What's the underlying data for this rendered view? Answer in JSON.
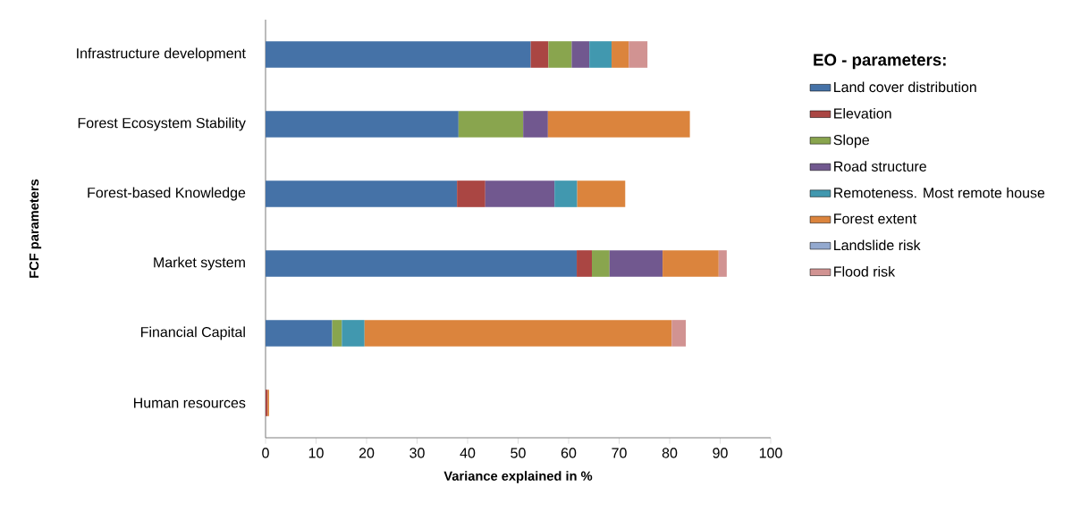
{
  "chart_data": {
    "type": "bar",
    "orientation": "horizontal",
    "stacked": true,
    "xlabel": "Variance explained in %",
    "ylabel": "FCF parameters",
    "legend_title": "EO - parameters:",
    "legend": "right",
    "categories": [
      "Infrastructure development",
      "Forest Ecosystem Stability",
      "Forest-based Knowledge",
      "Market system",
      "Financial Capital",
      "Human resources"
    ],
    "xlim": [
      0,
      100
    ],
    "xticks": [
      0,
      10,
      20,
      30,
      40,
      50,
      60,
      70,
      80,
      90,
      100
    ],
    "series": [
      {
        "name": "Land cover distribution",
        "color": "#4572a7",
        "values": [
          52.5,
          38.2,
          37.9,
          61.6,
          13.2,
          null
        ]
      },
      {
        "name": "Elevation",
        "color": "#aa4643",
        "values": [
          3.5,
          null,
          5.6,
          3.0,
          null,
          0.4
        ]
      },
      {
        "name": "Slope",
        "color": "#89a54e",
        "values": [
          4.6,
          12.8,
          null,
          3.5,
          1.9,
          null
        ]
      },
      {
        "name": "Road structure",
        "color": "#71588f",
        "values": [
          3.5,
          4.9,
          13.7,
          10.5,
          null,
          null
        ]
      },
      {
        "name": "Remoteness. Most remote house",
        "color": "#4198af",
        "values": [
          4.4,
          null,
          4.5,
          null,
          4.5,
          null
        ]
      },
      {
        "name": "Forest extent",
        "color": "#db843d",
        "values": [
          3.4,
          28.1,
          9.5,
          11.1,
          60.8,
          0.3
        ]
      },
      {
        "name": "Landslide risk",
        "color": "#93a9cf",
        "values": [
          null,
          null,
          null,
          null,
          null,
          null
        ]
      },
      {
        "name": "Flood risk",
        "color": "#d19392",
        "values": [
          3.7,
          null,
          null,
          1.6,
          2.8,
          null
        ]
      }
    ]
  }
}
